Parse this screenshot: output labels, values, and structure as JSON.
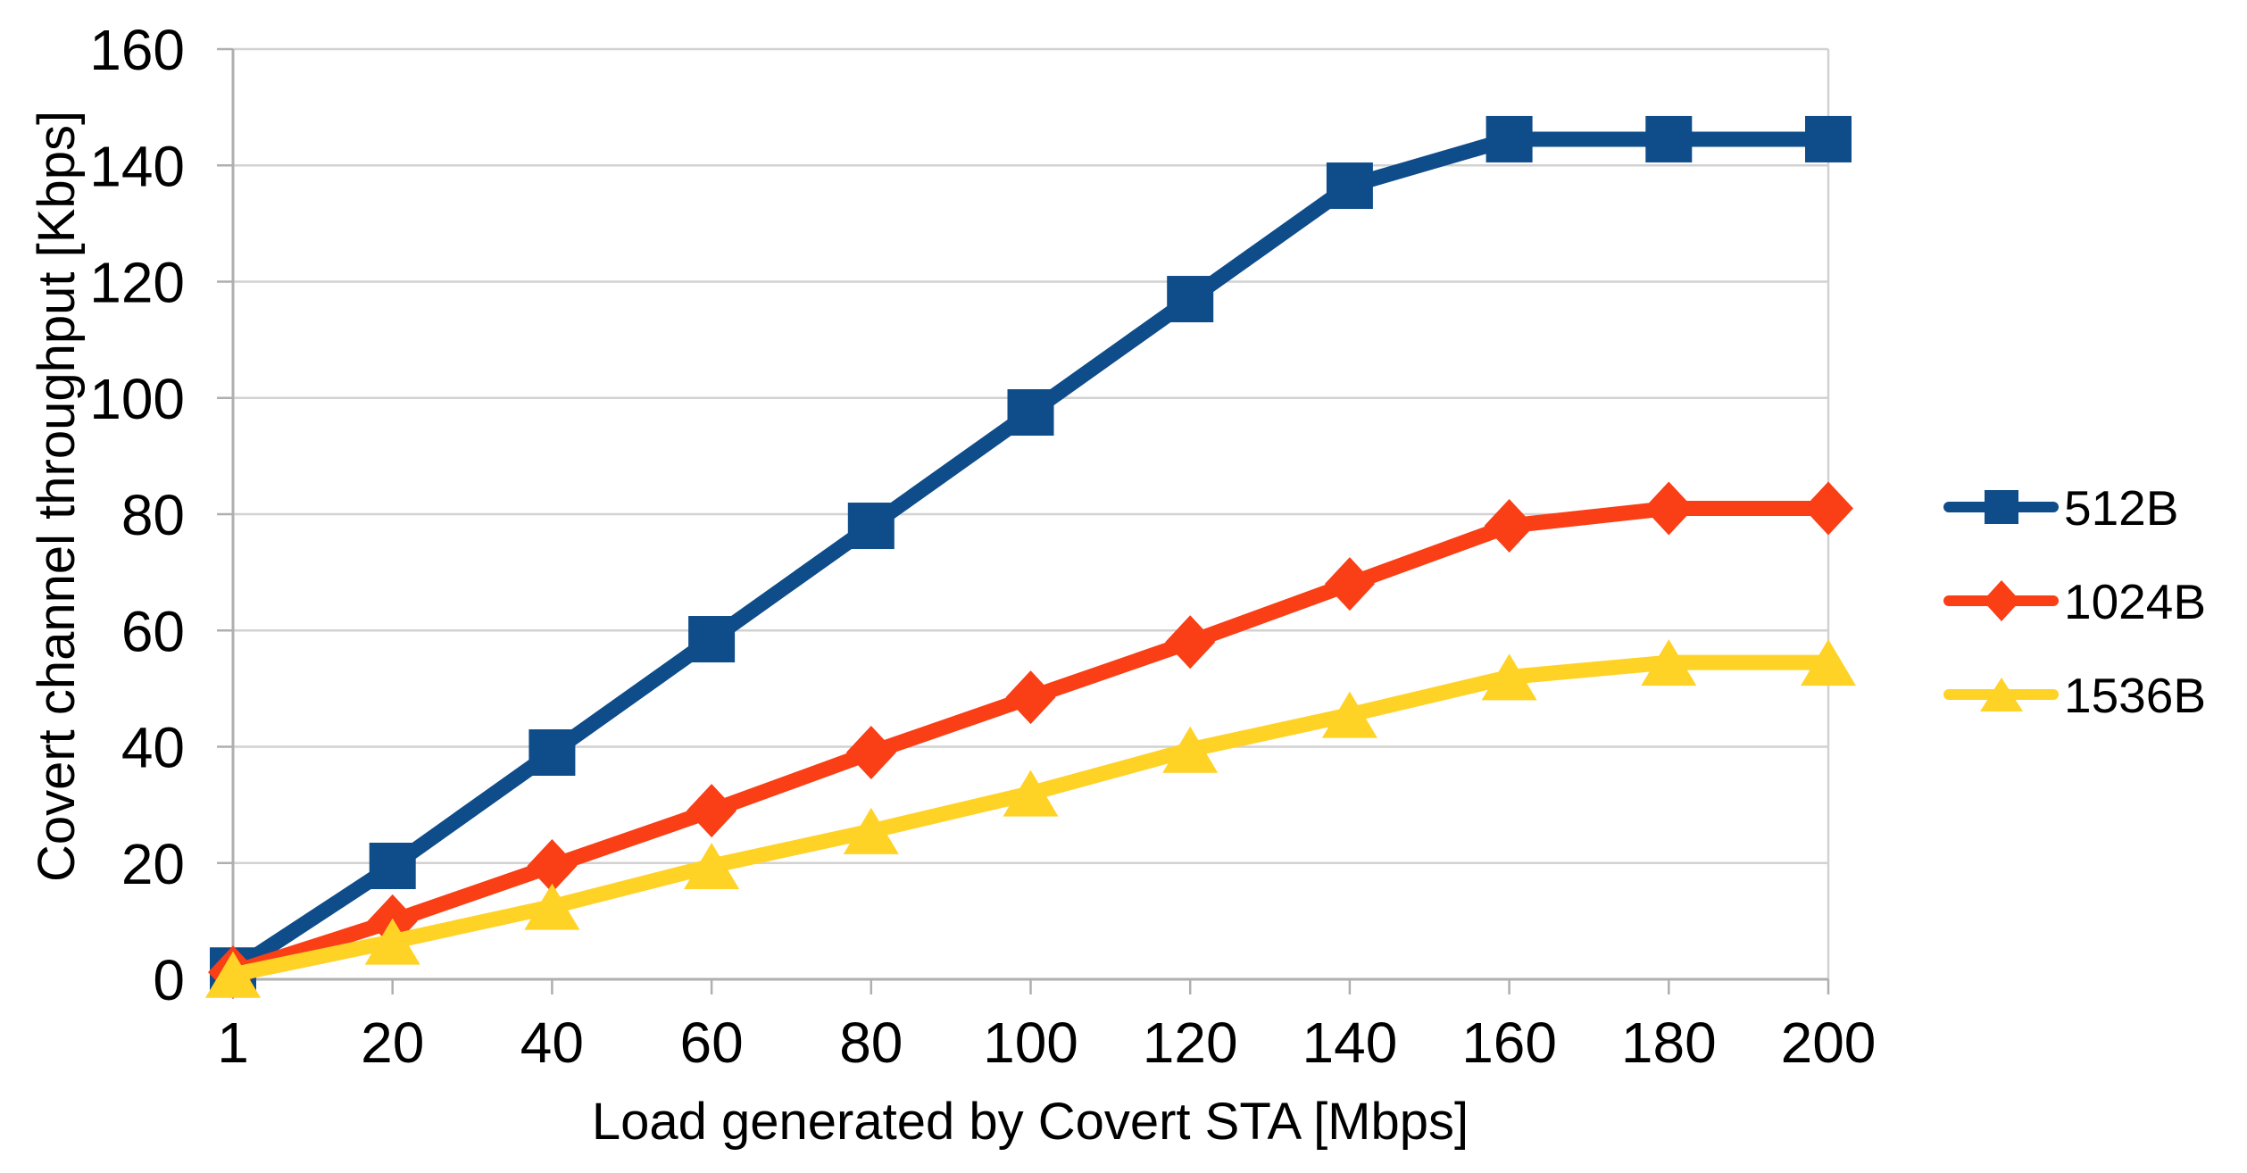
{
  "page": {
    "background": "#FFFFFF"
  },
  "chart_data": {
    "type": "line",
    "title": "",
    "xlabel": "Load generated by Covert STA [Mbps]",
    "ylabel": "Covert channel throughput [Kbps]",
    "categories": [
      "1",
      "20",
      "40",
      "60",
      "80",
      "100",
      "120",
      "140",
      "160",
      "180",
      "200"
    ],
    "x_numeric": [
      1,
      20,
      40,
      60,
      80,
      100,
      120,
      140,
      160,
      180,
      200
    ],
    "yticks": [
      0,
      20,
      40,
      60,
      80,
      100,
      120,
      140,
      160
    ],
    "ylim": [
      0,
      160
    ],
    "grid": "horizontal",
    "legend_position": "right-middle",
    "series": [
      {
        "name": "512B",
        "marker": "square",
        "color": "#0E4C8A",
        "values": [
          1.5,
          19.5,
          39,
          58.5,
          78,
          97.5,
          117,
          136.5,
          144.5,
          144.5,
          144.5
        ]
      },
      {
        "name": "1024B",
        "marker": "diamond",
        "color": "#FA3E15",
        "values": [
          1.2,
          10,
          19.5,
          29,
          39,
          48.5,
          58,
          68,
          78,
          81,
          81
        ]
      },
      {
        "name": "1536B",
        "marker": "triangle",
        "color": "#FFD226",
        "values": [
          0.8,
          6.5,
          12.5,
          19.5,
          25.5,
          32,
          39.5,
          45.5,
          52,
          54.5,
          54.5
        ]
      }
    ]
  },
  "style_colors": {
    "gridline": "#D2D2D2",
    "axis_line": "#AFAFAF",
    "tick_mark": "#AFAFAF",
    "text": "#000000"
  }
}
